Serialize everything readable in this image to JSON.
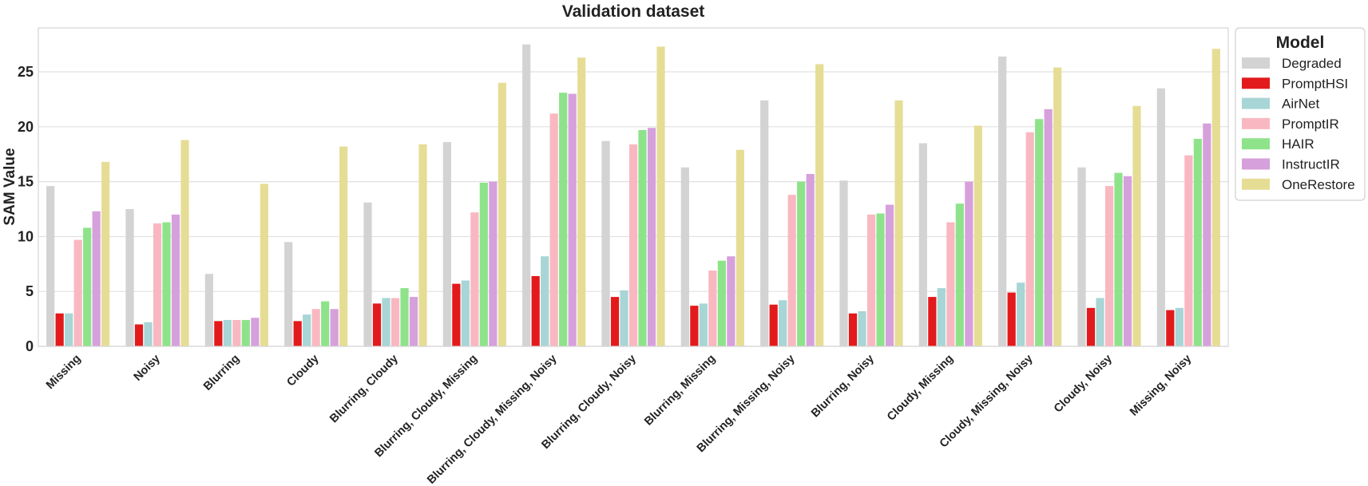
{
  "chart_data": {
    "type": "bar",
    "title": "Validation dataset",
    "xlabel": "",
    "ylabel": "SAM Value",
    "ylim": [
      0,
      29
    ],
    "yticks": [
      0,
      5,
      10,
      15,
      20,
      25
    ],
    "grid": true,
    "legend_title": "Model",
    "legend_position": "top-right outside",
    "categories": [
      "Missing",
      "Noisy",
      "Blurring",
      "Cloudy",
      "Blurring, Cloudy",
      "Blurring, Cloudy, Missing",
      "Blurring, Cloudy, Missing, Noisy",
      "Blurring, Cloudy, Noisy",
      "Blurring, Missing",
      "Blurring, Missing, Noisy",
      "Blurring, Noisy",
      "Cloudy, Missing",
      "Cloudy, Missing, Noisy",
      "Cloudy, Noisy",
      "Missing, Noisy"
    ],
    "series": [
      {
        "name": "Degraded",
        "color": "#d3d3d3",
        "values": [
          14.6,
          12.5,
          6.6,
          9.5,
          13.1,
          18.6,
          27.5,
          18.7,
          16.3,
          22.4,
          15.1,
          18.5,
          26.4,
          16.3,
          23.5
        ]
      },
      {
        "name": "PromptHSI",
        "color": "#e31a1c",
        "values": [
          3.0,
          2.0,
          2.3,
          2.3,
          3.9,
          5.7,
          6.4,
          4.5,
          3.7,
          3.8,
          3.0,
          4.5,
          4.9,
          3.5,
          3.3
        ]
      },
      {
        "name": "AirNet",
        "color": "#a8d5d5",
        "values": [
          3.0,
          2.2,
          2.4,
          2.9,
          4.4,
          6.0,
          8.2,
          5.1,
          3.9,
          4.2,
          3.2,
          5.3,
          5.8,
          4.4,
          3.5
        ]
      },
      {
        "name": "PromptIR",
        "color": "#f9b8c1",
        "values": [
          9.7,
          11.2,
          2.4,
          3.4,
          4.4,
          12.2,
          21.2,
          18.4,
          6.9,
          13.8,
          12.0,
          11.3,
          19.5,
          14.6,
          17.4
        ]
      },
      {
        "name": "HAIR",
        "color": "#8ee38a",
        "values": [
          10.8,
          11.3,
          2.4,
          4.1,
          5.3,
          14.9,
          23.1,
          19.7,
          7.8,
          15.0,
          12.1,
          13.0,
          20.7,
          15.8,
          18.9
        ]
      },
      {
        "name": "InstructIR",
        "color": "#d6a0dc",
        "values": [
          12.3,
          12.0,
          2.6,
          3.4,
          4.5,
          15.0,
          23.0,
          19.9,
          8.2,
          15.7,
          12.9,
          15.0,
          21.6,
          15.5,
          20.3
        ]
      },
      {
        "name": "OneRestore",
        "color": "#e6dd95",
        "values": [
          16.8,
          18.8,
          14.8,
          18.2,
          18.4,
          24.0,
          26.3,
          27.3,
          17.9,
          25.7,
          22.4,
          20.1,
          25.4,
          21.9,
          27.1
        ]
      }
    ]
  }
}
